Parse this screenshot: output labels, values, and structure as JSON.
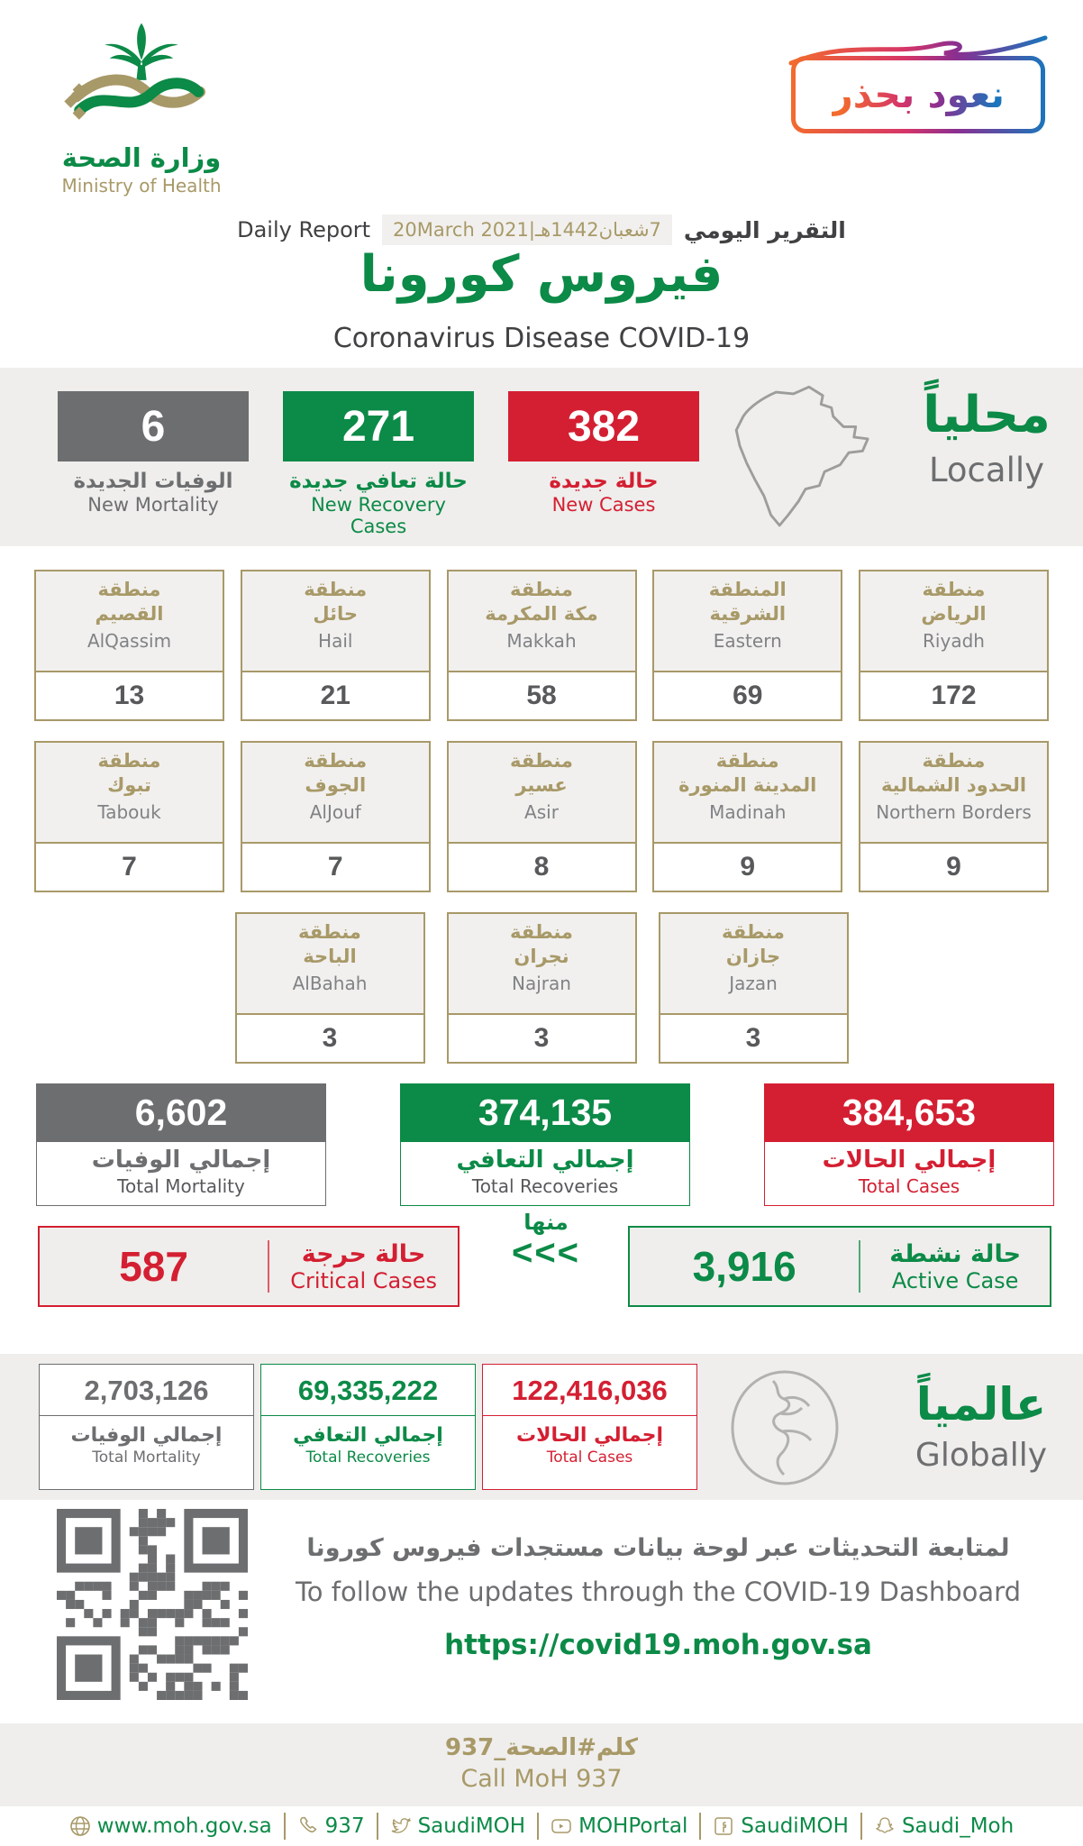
{
  "logo": {
    "title_ar": "وزارة الصحة",
    "title_en": "Ministry of Health"
  },
  "badge": {
    "text": "نعود بحذر"
  },
  "report": {
    "label_en": "Daily Report",
    "date": "7شعبان1442هـ|20March 2021",
    "label_ar": "التقرير اليومي"
  },
  "title": {
    "ar": "فيروس كورونا",
    "en": "Coronavirus Disease COVID-19"
  },
  "locally": {
    "heading_ar": "محلياً",
    "heading_en": "Locally",
    "new_cases": {
      "value": "382",
      "ar": "حالة جديدة",
      "en": "New Cases"
    },
    "new_recoveries": {
      "value": "271",
      "ar": "حالة تعافي جديدة",
      "en": "New Recovery Cases"
    },
    "new_mortality": {
      "value": "6",
      "ar": "الوفيات الجديدة",
      "en": "New Mortality"
    }
  },
  "regions": {
    "row1": [
      {
        "ar1": "منطقة",
        "ar2": "الرياض",
        "en": "Riyadh",
        "value": "172"
      },
      {
        "ar1": "المنطقة",
        "ar2": "الشرقية",
        "en": "Eastern",
        "value": "69"
      },
      {
        "ar1": "منطقة",
        "ar2": "مكة المكرمة",
        "en": "Makkah",
        "value": "58"
      },
      {
        "ar1": "منطقة",
        "ar2": "حائل",
        "en": "Hail",
        "value": "21"
      },
      {
        "ar1": "منطقة",
        "ar2": "القصيم",
        "en": "AlQassim",
        "value": "13"
      }
    ],
    "row2": [
      {
        "ar1": "منطقة",
        "ar2": "الحدود الشمالية",
        "en": "Northern Borders",
        "value": "9"
      },
      {
        "ar1": "منطقة",
        "ar2": "المدينة المنورة",
        "en": "Madinah",
        "value": "9"
      },
      {
        "ar1": "منطقة",
        "ar2": "عسير",
        "en": "Asir",
        "value": "8"
      },
      {
        "ar1": "منطقة",
        "ar2": "الجوف",
        "en": "AlJouf",
        "value": "7"
      },
      {
        "ar1": "منطقة",
        "ar2": "تبوك",
        "en": "Tabouk",
        "value": "7"
      }
    ],
    "row3": [
      {
        "ar1": "منطقة",
        "ar2": "جازان",
        "en": "Jazan",
        "value": "3"
      },
      {
        "ar1": "منطقة",
        "ar2": "نجران",
        "en": "Najran",
        "value": "3"
      },
      {
        "ar1": "منطقة",
        "ar2": "الباحة",
        "en": "AlBahah",
        "value": "3"
      }
    ]
  },
  "totals": {
    "cases": {
      "value": "384,653",
      "ar": "إجمالي الحالات",
      "en": "Total Cases"
    },
    "recoveries": {
      "value": "374,135",
      "ar": "إجمالي التعافي",
      "en": "Total Recoveries"
    },
    "mortality": {
      "value": "6,602",
      "ar": "إجمالي الوفيات",
      "en": "Total Mortality"
    }
  },
  "active": {
    "value": "3,916",
    "ar": "حالة نشطة",
    "en": "Active Case"
  },
  "of_which": {
    "ar": "منها",
    "chevrons": "<<<"
  },
  "critical": {
    "value": "587",
    "ar": "حالة حرجة",
    "en": "Critical Cases"
  },
  "globally": {
    "heading_ar": "عالمياً",
    "heading_en": "Globally",
    "cases": {
      "value": "122,416,036",
      "ar": "إجمالي الحالات",
      "en": "Total Cases"
    },
    "recoveries": {
      "value": "69,335,222",
      "ar": "إجمالي التعافي",
      "en": "Total Recoveries"
    },
    "mortality": {
      "value": "2,703,126",
      "ar": "إجمالي الوفيات",
      "en": "Total Mortality"
    }
  },
  "dashboard": {
    "ar": "لمتابعة التحديثات عبر لوحة بيانات مستجدات فيروس كورونا",
    "en": "To follow the updates through the COVID-19 Dashboard",
    "url": "https://covid19.moh.gov.sa"
  },
  "call": {
    "ar": "كلم#الصحة_937",
    "en": "Call MoH 937"
  },
  "footer": {
    "links": [
      {
        "icon": "globe-icon",
        "text": "www.moh.gov.sa"
      },
      {
        "icon": "phone-icon",
        "text": "937"
      },
      {
        "icon": "twitter-icon",
        "text": "SaudiMOH"
      },
      {
        "icon": "youtube-icon",
        "text": "MOHPortal"
      },
      {
        "icon": "facebook-icon",
        "text": "SaudiMOH"
      },
      {
        "icon": "snapchat-icon",
        "text": "Saudi_Moh"
      }
    ]
  },
  "colors": {
    "green": "#0c8a47",
    "red": "#d41f32",
    "gray": "#6d6e70",
    "gold": "#a89968"
  }
}
